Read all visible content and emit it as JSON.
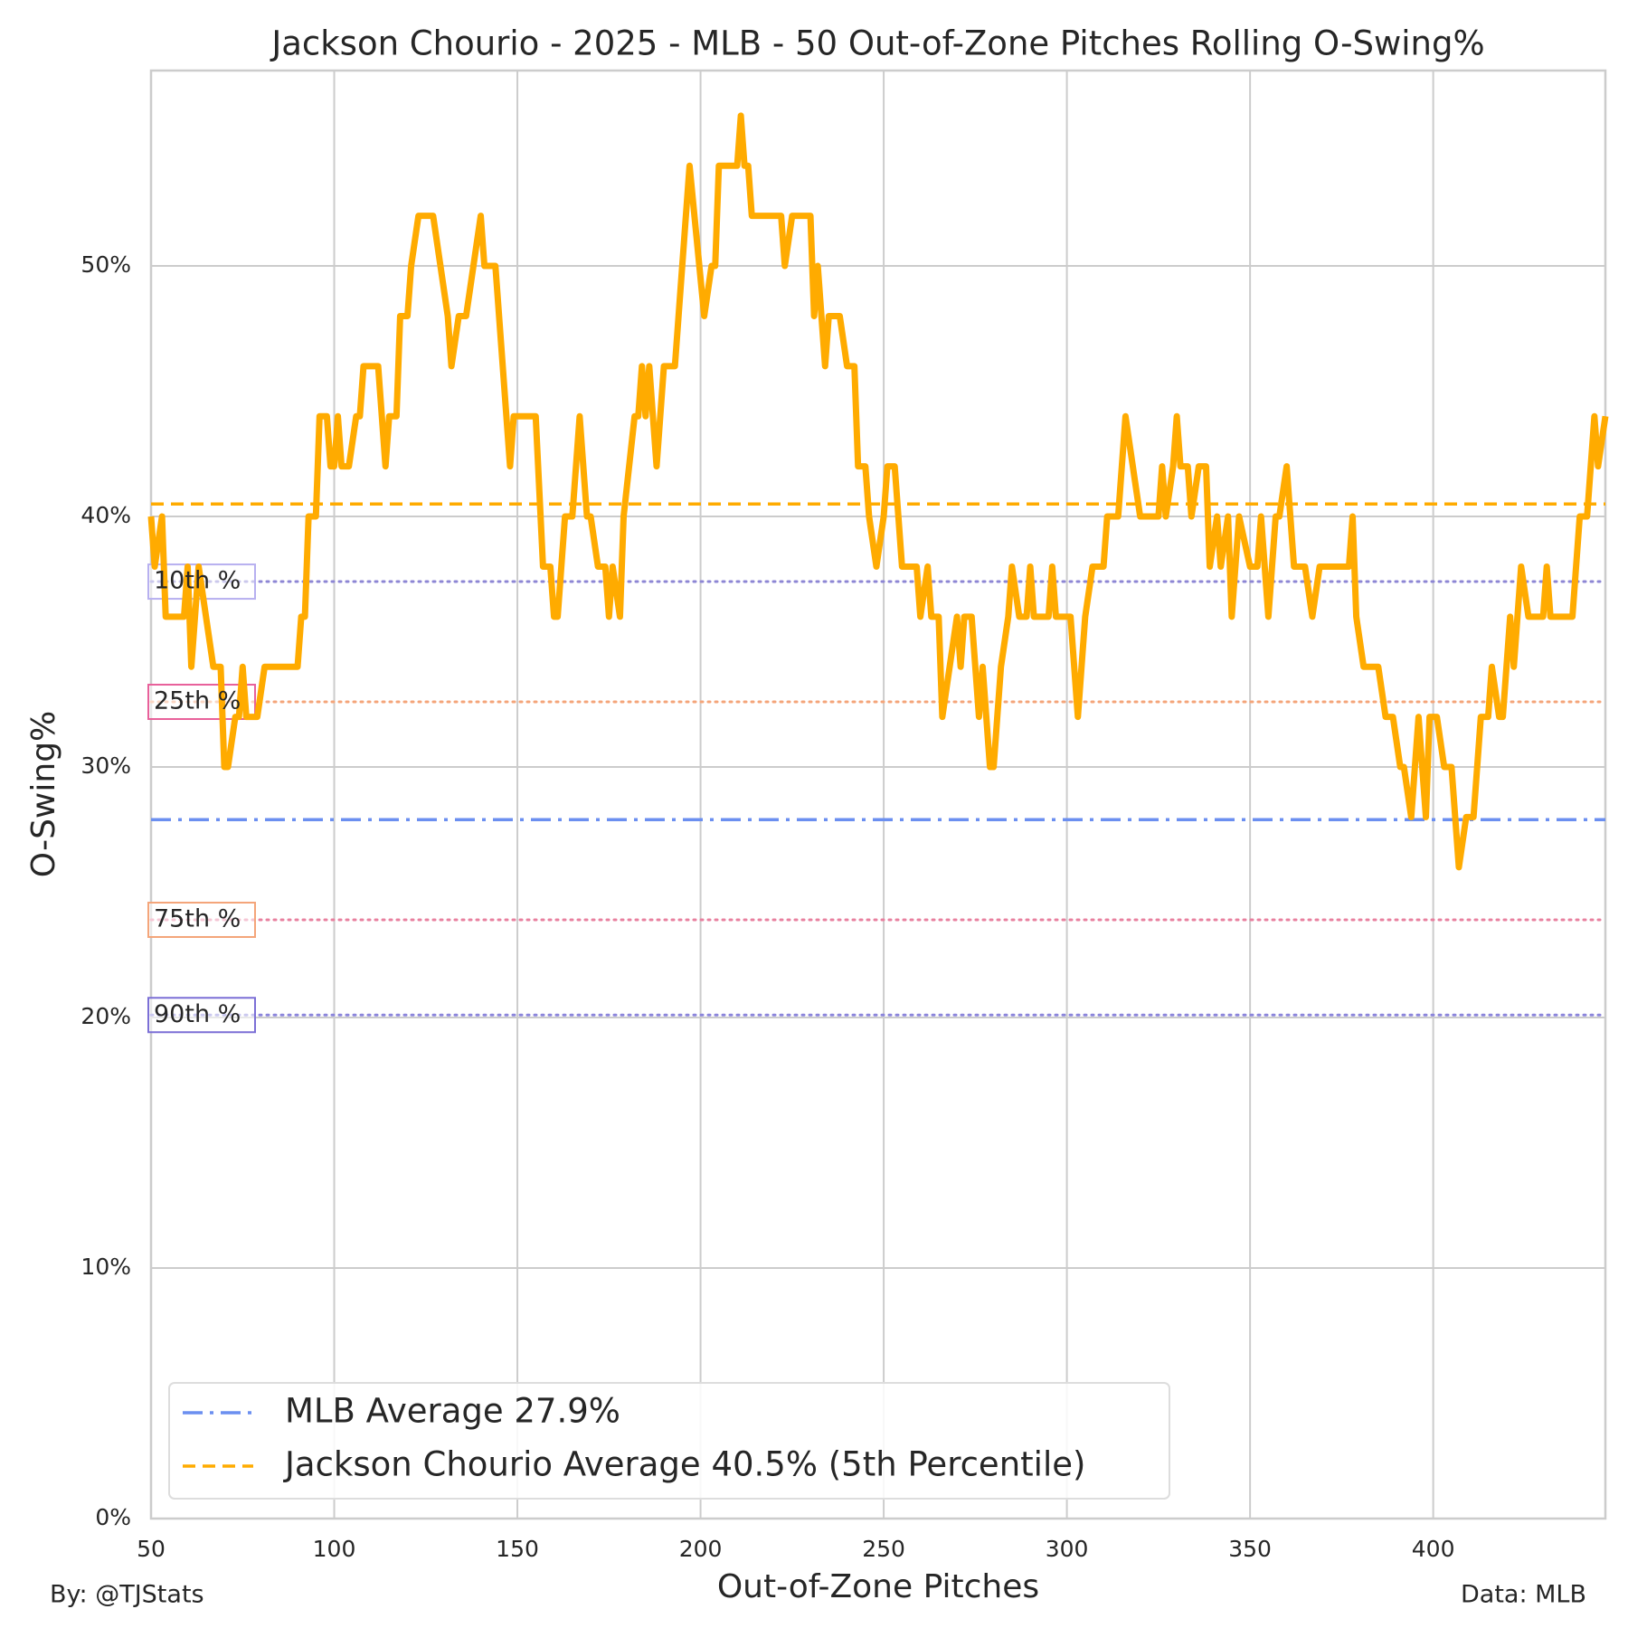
{
  "chart_data": {
    "type": "line",
    "title": "Jackson Chourio - 2025 - MLB - 50 Out-of-Zone Pitches Rolling O-Swing%",
    "x_label": "Out-of-Zone Pitches",
    "y_label": "O-Swing%",
    "credit": "By: @TJStats",
    "source": "Data: MLB",
    "color": "#ffab00",
    "x": [
      50,
      51,
      53,
      54,
      59,
      60,
      61,
      63,
      65,
      67,
      69,
      70,
      71,
      73,
      74,
      75,
      76,
      79,
      81,
      90,
      91,
      92,
      93,
      95,
      96,
      98,
      99,
      100,
      101,
      102,
      104,
      106,
      107,
      108,
      112,
      114,
      115,
      117,
      118,
      120,
      121,
      123,
      127,
      129,
      131,
      132,
      134,
      136,
      138,
      140,
      141,
      144,
      147,
      148,
      149,
      155,
      157,
      159,
      160,
      161,
      163,
      165,
      167,
      169,
      170,
      172,
      174,
      175,
      176,
      178,
      179,
      182,
      183,
      184,
      185,
      186,
      188,
      189,
      190,
      193,
      195,
      197,
      201,
      203,
      204,
      205,
      210,
      211,
      212,
      213,
      214,
      222,
      223,
      225,
      230,
      231,
      232,
      233,
      234,
      235,
      238,
      240,
      242,
      243,
      245,
      246,
      248,
      250,
      251,
      253,
      255,
      259,
      260,
      262,
      263,
      265,
      266,
      268,
      270,
      271,
      272,
      274,
      276,
      277,
      279,
      280,
      282,
      284,
      285,
      287,
      289,
      290,
      291,
      295,
      296,
      297,
      301,
      303,
      305,
      307,
      310,
      311,
      314,
      316,
      318,
      320,
      325,
      326,
      327,
      329,
      330,
      331,
      333,
      334,
      336,
      338,
      339,
      341,
      342,
      344,
      345,
      347,
      350,
      352,
      353,
      355,
      357,
      358,
      360,
      362,
      365,
      367,
      369,
      377,
      378,
      379,
      381,
      385,
      387,
      389,
      391,
      392,
      394,
      396,
      398,
      399,
      401,
      403,
      405,
      407,
      409,
      411,
      413,
      415,
      416,
      418,
      419,
      421,
      422,
      424,
      426,
      430,
      431,
      432,
      438,
      440,
      442,
      444,
      445,
      447
    ],
    "values": [
      40,
      38,
      40,
      36,
      36,
      38,
      34,
      38,
      36,
      34,
      34,
      30,
      30,
      32,
      32,
      34,
      32,
      32,
      34,
      34,
      36,
      36,
      40,
      40,
      44,
      44,
      42,
      42,
      44,
      42,
      42,
      44,
      44,
      46,
      46,
      42,
      44,
      44,
      48,
      48,
      50,
      52,
      52,
      50,
      48,
      46,
      48,
      48,
      50,
      52,
      50,
      50,
      44,
      42,
      44,
      44,
      38,
      38,
      36,
      36,
      40,
      40,
      44,
      40,
      40,
      38,
      38,
      36,
      38,
      36,
      40,
      44,
      44,
      46,
      44,
      46,
      42,
      44,
      46,
      46,
      50,
      54,
      48,
      50,
      50,
      54,
      54,
      56,
      54,
      54,
      52,
      52,
      50,
      52,
      52,
      48,
      50,
      48,
      46,
      48,
      48,
      46,
      46,
      42,
      42,
      40,
      38,
      40,
      42,
      42,
      38,
      38,
      36,
      38,
      36,
      36,
      32,
      34,
      36,
      34,
      36,
      36,
      32,
      34,
      30,
      30,
      34,
      36,
      38,
      36,
      36,
      38,
      36,
      36,
      38,
      36,
      36,
      32,
      36,
      38,
      38,
      40,
      40,
      44,
      42,
      40,
      40,
      42,
      40,
      42,
      44,
      42,
      42,
      40,
      42,
      42,
      38,
      40,
      38,
      40,
      36,
      40,
      38,
      38,
      40,
      36,
      40,
      40,
      42,
      38,
      38,
      36,
      38,
      38,
      40,
      36,
      34,
      34,
      32,
      32,
      30,
      30,
      28,
      32,
      28,
      32,
      32,
      30,
      30,
      26,
      28,
      28,
      32,
      32,
      34,
      32,
      32,
      36,
      34,
      38,
      36,
      36,
      38,
      36,
      36,
      40,
      40,
      44,
      42,
      44
    ],
    "xlim": [
      50,
      447
    ],
    "ylim": [
      0,
      57.8
    ],
    "xticks": [
      50,
      100,
      150,
      200,
      250,
      300,
      350,
      400
    ],
    "yticks": [
      {
        "value": 0,
        "label": "0%"
      },
      {
        "value": 10,
        "label": "10%"
      },
      {
        "value": 20,
        "label": "20%"
      },
      {
        "value": 30,
        "label": "30%"
      },
      {
        "value": 40,
        "label": "40%"
      },
      {
        "value": 50,
        "label": "50%"
      }
    ],
    "grid": true,
    "legend": "lower left",
    "reference_lines": [
      {
        "label": "MLB Average 27.9%",
        "value": 27.9,
        "color": "#6b8ff0",
        "style": "dashdot"
      },
      {
        "label": "Jackson Chourio Average 40.5% (5th Percentile)",
        "value": 40.5,
        "color": "#ffab00",
        "style": "dashed"
      }
    ],
    "percentiles": [
      {
        "label": "10th %",
        "value": 37.4,
        "color": "#8d86d4",
        "box_color": "#b7b0f0"
      },
      {
        "label": "25th %",
        "value": 32.6,
        "color": "#f4a57a",
        "box_color": "#e8609a"
      },
      {
        "label": "75th %",
        "value": 23.9,
        "color": "#e8809f",
        "box_color": "#f4a57a"
      },
      {
        "label": "90th %",
        "value": 20.1,
        "color": "#8b85db",
        "box_color": "#7b6fd6"
      }
    ]
  }
}
